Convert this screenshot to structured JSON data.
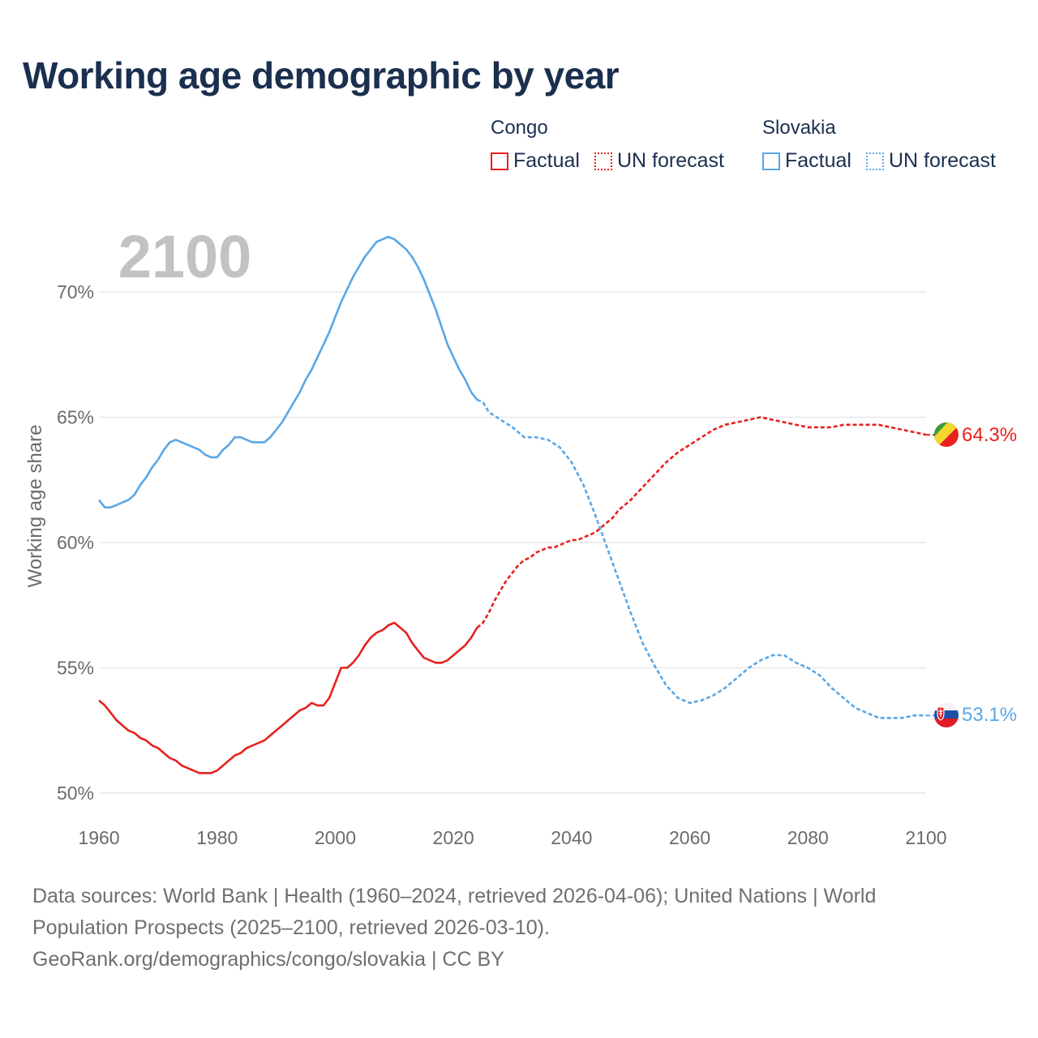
{
  "title": "Working age demographic by year",
  "legend": {
    "groups": [
      {
        "name": "Congo",
        "factual_label": "Factual",
        "forecast_label": "UN forecast",
        "color": "#e8211e"
      },
      {
        "name": "Slovakia",
        "factual_label": "Factual",
        "forecast_label": "UN forecast",
        "color": "#5aa7e6"
      }
    ]
  },
  "source": {
    "line1": "Data sources: World Bank | Health (1960–2024, retrieved 2026-04-06); United Nations | World",
    "line2": "Population Prospects (2025–2100, retrieved 2026-03-10).",
    "line3": "GeoRank.org/demographics/congo/slovakia | CC BY"
  },
  "chart_data": {
    "type": "line",
    "title": "Working age demographic by year",
    "year_label": "2100",
    "xlabel": "",
    "ylabel": "Working age share",
    "xlim": [
      1960,
      2100
    ],
    "ylim": [
      50,
      72
    ],
    "x_ticks": [
      1960,
      1980,
      2000,
      2020,
      2040,
      2060,
      2080,
      2100
    ],
    "y_ticks": [
      50,
      55,
      60,
      65,
      70
    ],
    "y_tick_labels": [
      "50%",
      "55%",
      "60%",
      "65%",
      "70%"
    ],
    "grid": true,
    "factual_end_year": 2024,
    "series": [
      {
        "name": "Congo",
        "color": "#e8211e",
        "end_label": "64.3%",
        "end_value": 64.3,
        "points": [
          [
            1960,
            53.7
          ],
          [
            1961,
            53.5
          ],
          [
            1962,
            53.2
          ],
          [
            1963,
            52.9
          ],
          [
            1964,
            52.7
          ],
          [
            1965,
            52.5
          ],
          [
            1966,
            52.4
          ],
          [
            1967,
            52.2
          ],
          [
            1968,
            52.1
          ],
          [
            1969,
            51.9
          ],
          [
            1970,
            51.8
          ],
          [
            1971,
            51.6
          ],
          [
            1972,
            51.4
          ],
          [
            1973,
            51.3
          ],
          [
            1974,
            51.1
          ],
          [
            1975,
            51.0
          ],
          [
            1976,
            50.9
          ],
          [
            1977,
            50.8
          ],
          [
            1978,
            50.8
          ],
          [
            1979,
            50.8
          ],
          [
            1980,
            50.9
          ],
          [
            1981,
            51.1
          ],
          [
            1982,
            51.3
          ],
          [
            1983,
            51.5
          ],
          [
            1984,
            51.6
          ],
          [
            1985,
            51.8
          ],
          [
            1986,
            51.9
          ],
          [
            1987,
            52.0
          ],
          [
            1988,
            52.1
          ],
          [
            1989,
            52.3
          ],
          [
            1990,
            52.5
          ],
          [
            1991,
            52.7
          ],
          [
            1992,
            52.9
          ],
          [
            1993,
            53.1
          ],
          [
            1994,
            53.3
          ],
          [
            1995,
            53.4
          ],
          [
            1996,
            53.6
          ],
          [
            1997,
            53.5
          ],
          [
            1998,
            53.5
          ],
          [
            1999,
            53.8
          ],
          [
            2000,
            54.4
          ],
          [
            2001,
            55.0
          ],
          [
            2002,
            55.0
          ],
          [
            2003,
            55.2
          ],
          [
            2004,
            55.5
          ],
          [
            2005,
            55.9
          ],
          [
            2006,
            56.2
          ],
          [
            2007,
            56.4
          ],
          [
            2008,
            56.5
          ],
          [
            2009,
            56.7
          ],
          [
            2010,
            56.8
          ],
          [
            2011,
            56.6
          ],
          [
            2012,
            56.4
          ],
          [
            2013,
            56.0
          ],
          [
            2014,
            55.7
          ],
          [
            2015,
            55.4
          ],
          [
            2016,
            55.3
          ],
          [
            2017,
            55.2
          ],
          [
            2018,
            55.2
          ],
          [
            2019,
            55.3
          ],
          [
            2020,
            55.5
          ],
          [
            2021,
            55.7
          ],
          [
            2022,
            55.9
          ],
          [
            2023,
            56.2
          ],
          [
            2024,
            56.6
          ],
          [
            2025,
            56.8
          ],
          [
            2026,
            57.2
          ],
          [
            2027,
            57.7
          ],
          [
            2028,
            58.1
          ],
          [
            2029,
            58.5
          ],
          [
            2030,
            58.8
          ],
          [
            2031,
            59.1
          ],
          [
            2032,
            59.3
          ],
          [
            2033,
            59.4
          ],
          [
            2034,
            59.6
          ],
          [
            2035,
            59.7
          ],
          [
            2036,
            59.8
          ],
          [
            2037,
            59.8
          ],
          [
            2038,
            59.9
          ],
          [
            2039,
            60.0
          ],
          [
            2040,
            60.1
          ],
          [
            2041,
            60.1
          ],
          [
            2042,
            60.2
          ],
          [
            2043,
            60.3
          ],
          [
            2044,
            60.4
          ],
          [
            2045,
            60.6
          ],
          [
            2046,
            60.8
          ],
          [
            2047,
            61.0
          ],
          [
            2048,
            61.3
          ],
          [
            2049,
            61.5
          ],
          [
            2050,
            61.7
          ],
          [
            2052,
            62.2
          ],
          [
            2054,
            62.7
          ],
          [
            2056,
            63.2
          ],
          [
            2058,
            63.6
          ],
          [
            2060,
            63.9
          ],
          [
            2062,
            64.2
          ],
          [
            2064,
            64.5
          ],
          [
            2066,
            64.7
          ],
          [
            2068,
            64.8
          ],
          [
            2070,
            64.9
          ],
          [
            2072,
            65.0
          ],
          [
            2074,
            64.9
          ],
          [
            2076,
            64.8
          ],
          [
            2078,
            64.7
          ],
          [
            2080,
            64.6
          ],
          [
            2082,
            64.6
          ],
          [
            2084,
            64.6
          ],
          [
            2086,
            64.7
          ],
          [
            2088,
            64.7
          ],
          [
            2090,
            64.7
          ],
          [
            2092,
            64.7
          ],
          [
            2094,
            64.6
          ],
          [
            2096,
            64.5
          ],
          [
            2098,
            64.4
          ],
          [
            2100,
            64.3
          ]
        ]
      },
      {
        "name": "Slovakia",
        "color": "#5aa7e6",
        "end_label": "53.1%",
        "end_value": 53.1,
        "points": [
          [
            1960,
            61.7
          ],
          [
            1961,
            61.4
          ],
          [
            1962,
            61.4
          ],
          [
            1963,
            61.5
          ],
          [
            1964,
            61.6
          ],
          [
            1965,
            61.7
          ],
          [
            1966,
            61.9
          ],
          [
            1967,
            62.3
          ],
          [
            1968,
            62.6
          ],
          [
            1969,
            63.0
          ],
          [
            1970,
            63.3
          ],
          [
            1971,
            63.7
          ],
          [
            1972,
            64.0
          ],
          [
            1973,
            64.1
          ],
          [
            1974,
            64.0
          ],
          [
            1975,
            63.9
          ],
          [
            1976,
            63.8
          ],
          [
            1977,
            63.7
          ],
          [
            1978,
            63.5
          ],
          [
            1979,
            63.4
          ],
          [
            1980,
            63.4
          ],
          [
            1981,
            63.7
          ],
          [
            1982,
            63.9
          ],
          [
            1983,
            64.2
          ],
          [
            1984,
            64.2
          ],
          [
            1985,
            64.1
          ],
          [
            1986,
            64.0
          ],
          [
            1987,
            64.0
          ],
          [
            1988,
            64.0
          ],
          [
            1989,
            64.2
          ],
          [
            1990,
            64.5
          ],
          [
            1991,
            64.8
          ],
          [
            1992,
            65.2
          ],
          [
            1993,
            65.6
          ],
          [
            1994,
            66.0
          ],
          [
            1995,
            66.5
          ],
          [
            1996,
            66.9
          ],
          [
            1997,
            67.4
          ],
          [
            1998,
            67.9
          ],
          [
            1999,
            68.4
          ],
          [
            2000,
            69.0
          ],
          [
            2001,
            69.6
          ],
          [
            2002,
            70.1
          ],
          [
            2003,
            70.6
          ],
          [
            2004,
            71.0
          ],
          [
            2005,
            71.4
          ],
          [
            2006,
            71.7
          ],
          [
            2007,
            72.0
          ],
          [
            2008,
            72.1
          ],
          [
            2009,
            72.2
          ],
          [
            2010,
            72.1
          ],
          [
            2011,
            71.9
          ],
          [
            2012,
            71.7
          ],
          [
            2013,
            71.4
          ],
          [
            2014,
            71.0
          ],
          [
            2015,
            70.5
          ],
          [
            2016,
            69.9
          ],
          [
            2017,
            69.3
          ],
          [
            2018,
            68.6
          ],
          [
            2019,
            67.9
          ],
          [
            2020,
            67.4
          ],
          [
            2021,
            66.9
          ],
          [
            2022,
            66.5
          ],
          [
            2023,
            66.0
          ],
          [
            2024,
            65.7
          ],
          [
            2025,
            65.6
          ],
          [
            2026,
            65.2
          ],
          [
            2028,
            64.9
          ],
          [
            2030,
            64.6
          ],
          [
            2032,
            64.2
          ],
          [
            2034,
            64.2
          ],
          [
            2036,
            64.1
          ],
          [
            2038,
            63.8
          ],
          [
            2040,
            63.2
          ],
          [
            2042,
            62.3
          ],
          [
            2044,
            61.1
          ],
          [
            2046,
            59.8
          ],
          [
            2048,
            58.5
          ],
          [
            2050,
            57.2
          ],
          [
            2052,
            56.0
          ],
          [
            2054,
            55.1
          ],
          [
            2056,
            54.3
          ],
          [
            2058,
            53.8
          ],
          [
            2060,
            53.6
          ],
          [
            2062,
            53.7
          ],
          [
            2064,
            53.9
          ],
          [
            2066,
            54.2
          ],
          [
            2068,
            54.6
          ],
          [
            2070,
            55.0
          ],
          [
            2072,
            55.3
          ],
          [
            2074,
            55.5
          ],
          [
            2076,
            55.5
          ],
          [
            2078,
            55.2
          ],
          [
            2080,
            55.0
          ],
          [
            2082,
            54.7
          ],
          [
            2084,
            54.2
          ],
          [
            2086,
            53.8
          ],
          [
            2088,
            53.4
          ],
          [
            2090,
            53.2
          ],
          [
            2092,
            53.0
          ],
          [
            2094,
            53.0
          ],
          [
            2096,
            53.0
          ],
          [
            2098,
            53.1
          ],
          [
            2100,
            53.1
          ]
        ]
      }
    ]
  }
}
